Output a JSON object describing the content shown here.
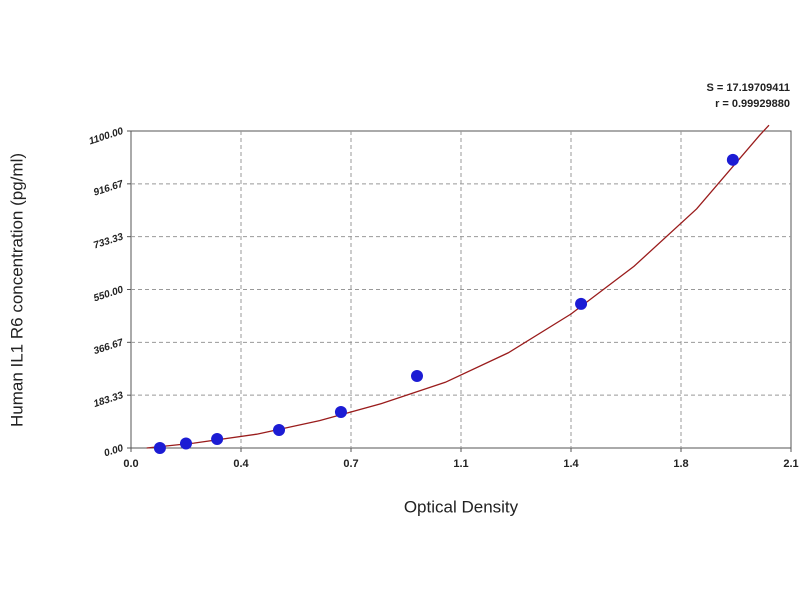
{
  "chart_data": {
    "type": "scatter",
    "stats": [
      "S = 17.19709411",
      "r = 0.99929880"
    ],
    "x_label": "Optical Density",
    "y_label": "Human IL1 R6 concentration (pg/ml)",
    "x": [
      0.092,
      0.175,
      0.274,
      0.471,
      0.668,
      0.91,
      1.432,
      1.915
    ],
    "values": [
      0,
      15.63,
      31.25,
      62.5,
      125,
      250,
      500,
      1000
    ],
    "color": "#1c1cd4",
    "curve": {
      "x": [
        0.05,
        0.2,
        0.4,
        0.6,
        0.8,
        1.0,
        1.2,
        1.4,
        1.6,
        1.8,
        2.0,
        2.03
      ],
      "values": [
        0,
        17,
        48,
        95,
        155,
        228,
        330,
        465,
        630,
        830,
        1085,
        1120
      ],
      "color": "#9a1c1c"
    },
    "xlim": [
      0,
      2.1
    ],
    "ylim": [
      0,
      1100
    ],
    "xticks": [
      {
        "value": 0,
        "label": "0.0"
      },
      {
        "value": 0.35,
        "label": "0.4"
      },
      0.7,
      {
        "value": 1.05,
        "label": "1.1"
      },
      1.4,
      {
        "value": 1.75,
        "label": "1.8"
      },
      2.1
    ],
    "yticks": [
      {
        "value": 0,
        "label": "0.00"
      },
      183.33,
      366.67,
      {
        "value": 550,
        "label": "550.00"
      },
      733.33,
      916.67,
      {
        "value": 1100,
        "label": "1100.00"
      }
    ],
    "grid": true
  }
}
